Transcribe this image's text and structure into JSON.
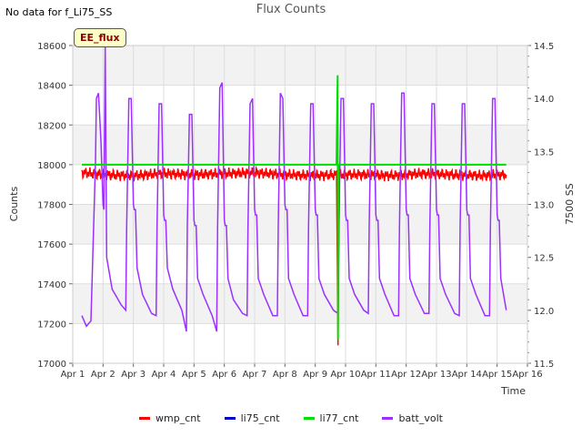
{
  "chart_data": {
    "type": "line",
    "title": "Flux Counts",
    "no_data_note": "No data for f_Li75_SS",
    "badge_label": "EE_flux",
    "xlabel": "Time",
    "ylabel": "Counts",
    "y2label": "7500 SS",
    "xlim": [
      1,
      16
    ],
    "ylim": [
      17000,
      18600
    ],
    "y2lim": [
      11.5,
      14.5
    ],
    "x_ticks": [
      1,
      2,
      3,
      4,
      5,
      6,
      7,
      8,
      9,
      10,
      11,
      12,
      13,
      14,
      15,
      16
    ],
    "x_tick_labels": [
      "Apr 1",
      "Apr 2",
      "Apr 3",
      "Apr 4",
      "Apr 5",
      "Apr 6",
      "Apr 7",
      "Apr 8",
      "Apr 9",
      "Apr 10",
      "Apr 11",
      "Apr 12",
      "Apr 13",
      "Apr 14",
      "Apr 15",
      "Apr 16"
    ],
    "y_ticks": [
      17000,
      17200,
      17400,
      17600,
      17800,
      18000,
      18200,
      18400,
      18600
    ],
    "y_tick_labels": [
      "17000",
      "17200",
      "17400",
      "17600",
      "17800",
      "18000",
      "18200",
      "18400",
      "18600"
    ],
    "y2_ticks": [
      11.5,
      12.0,
      12.5,
      13.0,
      13.5,
      14.0,
      14.5
    ],
    "y2_tick_labels": [
      "11.5",
      "12.0",
      "12.5",
      "13.0",
      "13.5",
      "14.0",
      "14.5"
    ],
    "series": [
      {
        "name": "wmp_cnt",
        "color": "#ff0000",
        "axis": "left",
        "x": [
          1.3,
          2.0,
          3.0,
          4.0,
          5.0,
          6.0,
          7.0,
          8.0,
          9.0,
          9.7,
          9.75,
          9.8,
          10.5,
          11.5,
          12.5,
          13.5,
          14.5,
          15.3
        ],
        "values": [
          17960,
          17950,
          17945,
          17955,
          17950,
          17955,
          17960,
          17950,
          17945,
          17950,
          17090,
          17950,
          17950,
          17945,
          17955,
          17950,
          17945,
          17950
        ]
      },
      {
        "name": "li75_cnt",
        "color": "#0000cc",
        "axis": "left",
        "x": [],
        "values": []
      },
      {
        "name": "li77_cnt",
        "color": "#00dd00",
        "axis": "left",
        "x": [
          1.3,
          9.7,
          9.74,
          9.75,
          9.76,
          9.8,
          15.3
        ],
        "values": [
          18000,
          18000,
          18450,
          17120,
          18000,
          18000,
          18000
        ]
      },
      {
        "name": "batt_volt",
        "color": "#9b30ff",
        "axis": "right",
        "x": [
          1.3,
          1.45,
          1.6,
          1.75,
          1.78,
          1.85,
          1.93,
          2.0,
          2.03,
          2.07,
          2.12,
          2.3,
          2.6,
          2.75,
          2.78,
          2.85,
          2.93,
          3.0,
          3.03,
          3.07,
          3.12,
          3.3,
          3.6,
          3.75,
          3.78,
          3.85,
          3.93,
          4.0,
          4.03,
          4.07,
          4.12,
          4.3,
          4.6,
          4.75,
          4.78,
          4.85,
          4.93,
          5.0,
          5.03,
          5.07,
          5.12,
          5.3,
          5.6,
          5.75,
          5.78,
          5.85,
          5.93,
          6.0,
          6.03,
          6.07,
          6.12,
          6.3,
          6.6,
          6.75,
          6.78,
          6.85,
          6.93,
          7.0,
          7.03,
          7.07,
          7.12,
          7.3,
          7.6,
          7.75,
          7.78,
          7.85,
          7.93,
          8.0,
          8.03,
          8.07,
          8.12,
          8.3,
          8.6,
          8.75,
          8.78,
          8.85,
          8.93,
          9.0,
          9.03,
          9.07,
          9.12,
          9.3,
          9.6,
          9.75,
          9.78,
          9.85,
          9.93,
          10.0,
          10.03,
          10.07,
          10.12,
          10.3,
          10.6,
          10.75,
          10.78,
          10.85,
          10.93,
          11.0,
          11.03,
          11.07,
          11.12,
          11.3,
          11.6,
          11.75,
          11.78,
          11.85,
          11.93,
          12.0,
          12.03,
          12.07,
          12.12,
          12.3,
          12.6,
          12.75,
          12.78,
          12.85,
          12.93,
          13.0,
          13.03,
          13.07,
          13.12,
          13.3,
          13.6,
          13.75,
          13.78,
          13.85,
          13.93,
          14.0,
          14.03,
          14.07,
          14.12,
          14.3,
          14.6,
          14.75,
          14.78,
          14.85,
          14.93,
          15.0,
          15.03,
          15.07,
          15.12,
          15.3
        ],
        "values": [
          11.95,
          11.85,
          11.9,
          13.4,
          14.0,
          14.05,
          13.6,
          13.0,
          12.95,
          14.5,
          12.5,
          12.2,
          12.05,
          12.0,
          12.8,
          14.0,
          14.0,
          13.0,
          12.95,
          12.95,
          12.4,
          12.15,
          11.97,
          11.95,
          12.8,
          13.95,
          13.95,
          12.9,
          12.85,
          12.85,
          12.4,
          12.2,
          12.0,
          11.8,
          12.8,
          13.85,
          13.85,
          12.85,
          12.8,
          12.8,
          12.3,
          12.15,
          11.95,
          11.8,
          12.8,
          14.1,
          14.15,
          12.85,
          12.8,
          12.8,
          12.3,
          12.1,
          11.97,
          11.95,
          12.8,
          13.95,
          14.0,
          12.95,
          12.9,
          12.9,
          12.3,
          12.15,
          11.95,
          11.95,
          12.8,
          14.05,
          14.0,
          13.0,
          12.95,
          12.95,
          12.3,
          12.15,
          11.95,
          11.95,
          12.8,
          13.95,
          13.95,
          12.95,
          12.9,
          12.9,
          12.3,
          12.15,
          12.0,
          11.97,
          12.8,
          14.0,
          14.0,
          12.9,
          12.85,
          12.85,
          12.3,
          12.15,
          12.0,
          11.97,
          12.8,
          13.95,
          13.95,
          12.9,
          12.85,
          12.85,
          12.3,
          12.15,
          11.95,
          11.95,
          12.8,
          14.05,
          14.05,
          12.95,
          12.9,
          12.9,
          12.3,
          12.15,
          11.97,
          11.97,
          12.8,
          13.95,
          13.95,
          12.95,
          12.9,
          12.9,
          12.3,
          12.15,
          11.97,
          11.95,
          12.8,
          13.95,
          13.95,
          12.95,
          12.9,
          12.9,
          12.3,
          12.15,
          11.95,
          11.95,
          12.8,
          14.0,
          14.0,
          12.9,
          12.85,
          12.85,
          12.3,
          12.0
        ]
      }
    ],
    "legend_position": "bottom-center"
  }
}
